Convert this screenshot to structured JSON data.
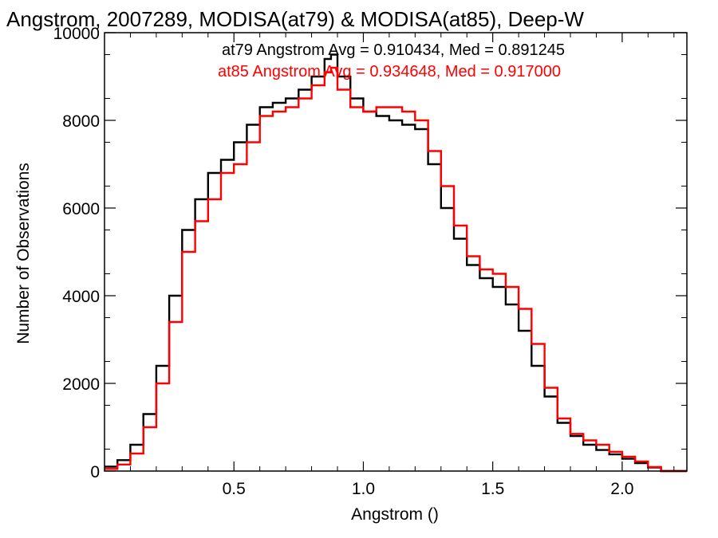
{
  "chart_data": {
    "type": "line",
    "step": true,
    "title": "Angstrom, 2007289, MODISA(at79) & MODISA(at85), Deep-W",
    "xlabel": "Angstrom ()",
    "ylabel": "Number of Observations",
    "xlim": [
      0.0,
      2.25
    ],
    "ylim": [
      0,
      10000
    ],
    "x_ticks": [
      0.5,
      1.0,
      1.5,
      2.0
    ],
    "x_tick_labels": [
      "0.5",
      "1.0",
      "1.5",
      "2.0"
    ],
    "y_ticks": [
      0,
      2000,
      4000,
      6000,
      8000,
      10000
    ],
    "y_tick_labels": [
      "0",
      "2000",
      "4000",
      "6000",
      "8000",
      "10000"
    ],
    "grid": false,
    "annotations": [
      {
        "text": "at79 Angstrom Avg = 0.910434, Med = 0.891245",
        "color": "#000000"
      },
      {
        "text": "at85 Angstrom Avg = 0.934648, Med = 0.917000",
        "color": "#ff0000"
      }
    ],
    "series": [
      {
        "color": "#000000",
        "x": [
          0.0,
          0.05,
          0.1,
          0.15,
          0.2,
          0.25,
          0.3,
          0.35,
          0.4,
          0.45,
          0.5,
          0.55,
          0.6,
          0.65,
          0.7,
          0.75,
          0.8,
          0.85,
          0.875,
          0.9,
          0.95,
          1.0,
          1.05,
          1.1,
          1.15,
          1.2,
          1.25,
          1.3,
          1.35,
          1.4,
          1.45,
          1.5,
          1.55,
          1.6,
          1.65,
          1.7,
          1.75,
          1.8,
          1.85,
          1.9,
          1.95,
          2.0,
          2.05,
          2.1,
          2.15
        ],
        "y": [
          100,
          250,
          600,
          1300,
          2400,
          4000,
          5500,
          6200,
          6800,
          7100,
          7500,
          7900,
          8300,
          8400,
          8500,
          8700,
          9000,
          9400,
          9500,
          9000,
          8500,
          8200,
          8100,
          8000,
          7900,
          7800,
          7000,
          6000,
          5300,
          4700,
          4400,
          4200,
          3800,
          3200,
          2400,
          1700,
          1100,
          800,
          600,
          480,
          380,
          280,
          180,
          80,
          0
        ]
      },
      {
        "color": "#ff0000",
        "x": [
          0.0,
          0.05,
          0.1,
          0.15,
          0.2,
          0.25,
          0.3,
          0.35,
          0.4,
          0.45,
          0.5,
          0.55,
          0.6,
          0.65,
          0.7,
          0.75,
          0.8,
          0.85,
          0.875,
          0.9,
          0.95,
          1.0,
          1.05,
          1.1,
          1.15,
          1.2,
          1.25,
          1.3,
          1.35,
          1.4,
          1.45,
          1.5,
          1.55,
          1.6,
          1.65,
          1.7,
          1.75,
          1.8,
          1.85,
          1.9,
          1.95,
          2.0,
          2.05,
          2.1,
          2.15,
          2.25
        ],
        "y": [
          50,
          150,
          400,
          1000,
          2000,
          3400,
          5000,
          5700,
          6200,
          6800,
          7000,
          7500,
          8100,
          8200,
          8300,
          8500,
          8800,
          9100,
          9200,
          8700,
          8300,
          8200,
          8300,
          8300,
          8200,
          8000,
          7300,
          6500,
          5600,
          4900,
          4600,
          4500,
          4200,
          3700,
          2900,
          1900,
          1200,
          850,
          700,
          600,
          440,
          330,
          220,
          90,
          0,
          0
        ]
      }
    ]
  }
}
